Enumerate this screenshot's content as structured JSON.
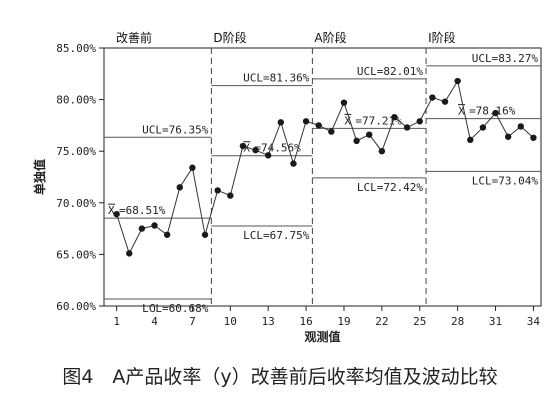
{
  "caption": "图4　A产品收率（y）改善前后收率均值及波动比较",
  "chart_data": {
    "type": "line",
    "xlabel": "观测值",
    "ylabel": "单独值",
    "ylim": [
      60,
      85
    ],
    "xlim": [
      0,
      34.6
    ],
    "yticks": [
      "60.00%",
      "65.00%",
      "70.00%",
      "75.00%",
      "80.00%",
      "85.00%"
    ],
    "ytick_values": [
      60,
      65,
      70,
      75,
      80,
      85
    ],
    "xticks": [
      "1",
      "4",
      "7",
      "10",
      "13",
      "16",
      "19",
      "22",
      "25",
      "28",
      "31",
      "34"
    ],
    "xtick_values": [
      1,
      4,
      7,
      10,
      13,
      16,
      19,
      22,
      25,
      28,
      31,
      34
    ],
    "grid": false,
    "line_color": "#333333",
    "marker_color": "#1a1a1a",
    "limit_color": "#555555",
    "x": [
      1,
      2,
      3,
      4,
      5,
      6,
      7,
      8,
      9,
      10,
      11,
      12,
      13,
      14,
      15,
      16,
      17,
      18,
      19,
      20,
      21,
      22,
      23,
      24,
      25,
      26,
      27,
      28,
      29,
      30,
      31,
      32,
      33,
      34
    ],
    "values": [
      68.9,
      65.1,
      67.5,
      67.8,
      66.9,
      71.5,
      73.4,
      66.9,
      71.2,
      70.7,
      75.5,
      75.1,
      74.6,
      77.8,
      73.8,
      77.9,
      77.5,
      76.9,
      79.7,
      76.0,
      76.6,
      75.0,
      78.3,
      77.3,
      77.9,
      80.2,
      79.8,
      81.8,
      76.1,
      77.3,
      78.7,
      76.4,
      77.4,
      76.3
    ],
    "phases": [
      {
        "name": "改善前",
        "start": 1,
        "end": 8,
        "mean": 68.51,
        "ucl": 76.35,
        "lcl": 60.68,
        "mean_label": "=68.51%",
        "ucl_label": "UCL=76.35%",
        "lcl_label": "LCL=60.68%"
      },
      {
        "name": "D阶段",
        "start": 9,
        "end": 16,
        "mean": 74.56,
        "ucl": 81.36,
        "lcl": 67.75,
        "mean_label": "=74.56%",
        "ucl_label": "UCL=81.36%",
        "lcl_label": "LCL=67.75%"
      },
      {
        "name": "A阶段",
        "start": 17,
        "end": 25,
        "mean": 77.21,
        "ucl": 82.01,
        "lcl": 72.42,
        "mean_label": "=77.21%",
        "ucl_label": "UCL=82.01%",
        "lcl_label": "LCL=72.42%"
      },
      {
        "name": "I阶段",
        "start": 26,
        "end": 34,
        "mean": 78.16,
        "ucl": 83.27,
        "lcl": 73.04,
        "mean_label": "=78.16%",
        "ucl_label": "UCL=83.27%",
        "lcl_label": "LCL=73.04%"
      }
    ],
    "mean_symbol": "X"
  }
}
